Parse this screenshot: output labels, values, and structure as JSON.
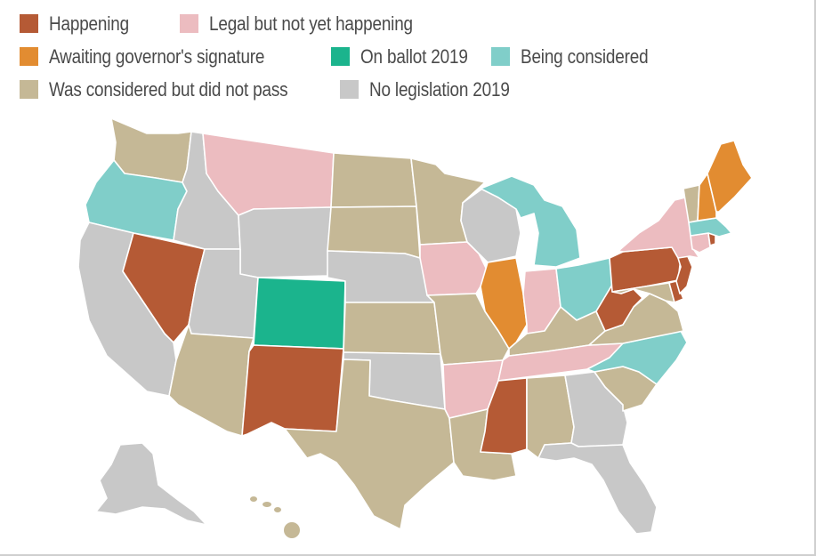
{
  "legend": [
    {
      "key": "happening",
      "label": "Happening",
      "color": "#b55a35"
    },
    {
      "key": "legal",
      "label": "Legal but not yet happening",
      "color": "#ecbcc0"
    },
    {
      "key": "awaiting",
      "label": "Awaiting governor's signature",
      "color": "#e28c31"
    },
    {
      "key": "ballot",
      "label": "On ballot 2019",
      "color": "#1bb48d"
    },
    {
      "key": "considered",
      "label": "Being considered",
      "color": "#80cec9"
    },
    {
      "key": "failed",
      "label": "Was considered but did not pass",
      "color": "#c5b896"
    },
    {
      "key": "none",
      "label": "No legislation 2019",
      "color": "#c8c8c8"
    }
  ],
  "map": {
    "water_color": "#ffffff",
    "states": {
      "WA": "failed",
      "OR": "considered",
      "CA": "none",
      "NV": "happening",
      "ID": "none",
      "MT": "legal",
      "WY": "none",
      "UT": "none",
      "AZ": "failed",
      "CO": "ballot",
      "NM": "happening",
      "ND": "failed",
      "SD": "failed",
      "NE": "none",
      "KS": "failed",
      "OK": "none",
      "TX": "failed",
      "MN": "failed",
      "IA": "legal",
      "MO": "failed",
      "AR": "legal",
      "LA": "failed",
      "WI": "none",
      "IL": "awaiting",
      "MI": "considered",
      "IN": "legal",
      "OH": "considered",
      "KY": "failed",
      "TN": "legal",
      "MS": "happening",
      "AL": "failed",
      "GA": "none",
      "FL": "none",
      "SC": "failed",
      "NC": "considered",
      "VA": "failed",
      "WV": "happening",
      "PA": "happening",
      "NY": "legal",
      "NJ": "happening",
      "DE": "happening",
      "MD": "failed",
      "CT": "legal",
      "RI": "happening",
      "MA": "considered",
      "VT": "failed",
      "NH": "awaiting",
      "ME": "awaiting",
      "AK": "none",
      "HI": "failed"
    }
  }
}
